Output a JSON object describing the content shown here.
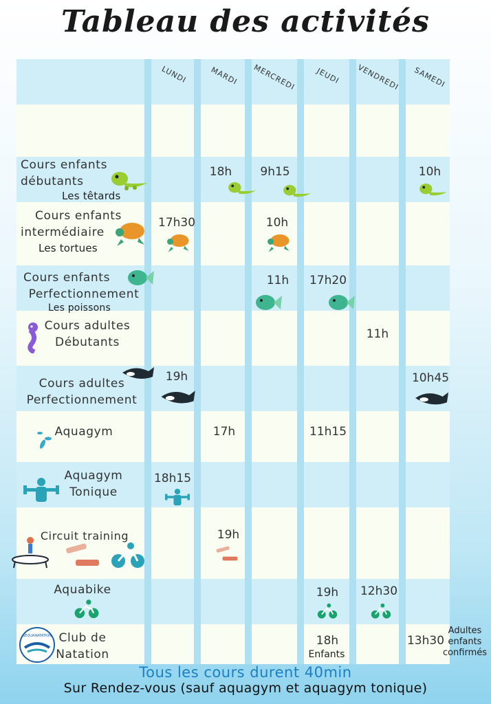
{
  "title": "Tableau des activités",
  "days": [
    "LUNDI",
    "MARDI",
    "MERCREDI",
    "JEUDI",
    "VENDREDI",
    "SAMEDI"
  ],
  "rows": {
    "tetards": {
      "line1": "Cours enfants",
      "line2": "débutants",
      "line3": "Les têtards",
      "times": {
        "mardi": "18h",
        "mercredi": "9h15",
        "samedi": "10h"
      }
    },
    "tortues": {
      "line1": "Cours enfants",
      "line2": "intermédiaire",
      "line3": "Les tortues",
      "times": {
        "lundi": "17h30",
        "mercredi": "10h"
      }
    },
    "poissons": {
      "line1": "Cours enfants",
      "line2": "Perfectionnement",
      "line3": "Les poissons",
      "times": {
        "mercredi": "11h",
        "jeudi": "17h20"
      }
    },
    "adultes_debutants": {
      "line1": "Cours adultes",
      "line2": "Débutants",
      "times": {
        "vendredi": "11h"
      }
    },
    "adultes_perf": {
      "line1": "Cours adultes",
      "line2": "Perfectionnement",
      "times": {
        "lundi": "19h",
        "samedi": "10h45"
      }
    },
    "aquagym": {
      "line1": "Aquagym",
      "times": {
        "mardi": "17h",
        "jeudi": "11h15"
      }
    },
    "aquagym_tonique": {
      "line1": "Aquagym",
      "line2": "Tonique",
      "times": {
        "lundi": "18h15"
      }
    },
    "circuit": {
      "line1": "Circuit training",
      "times": {
        "mardi": "19h"
      }
    },
    "aquabike": {
      "line1": "Aquabike",
      "times": {
        "jeudi": "19h",
        "vendredi": "12h30"
      }
    },
    "club": {
      "line1": "Club de",
      "line2": "Natation",
      "times": {
        "jeudi": "18h",
        "samedi": "13h30"
      },
      "jeudi_note": "Enfants",
      "samedi_note": [
        "Adultes",
        "enfants",
        "confirmés"
      ],
      "logo_text": "SEQUANATATION"
    }
  },
  "footer": {
    "duration": "Tous les cours durent 40min",
    "appointment": "Sur Rendez-vous (sauf aquagym et aquagym tonique)"
  },
  "colors": {
    "accent": "#1a7fc4",
    "row_light": "#fafdf2",
    "row_blue": "#cfeef8",
    "grid": "#aee0f1"
  }
}
